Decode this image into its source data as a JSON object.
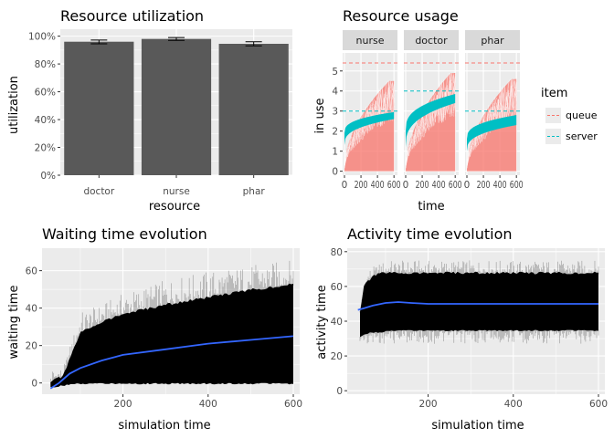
{
  "colors": {
    "panel_bg": "#ebebeb",
    "grid_major": "#ffffff",
    "strip_bg": "#d9d9d9",
    "bar_fill": "#595959",
    "queue": "#f8766d",
    "server": "#00bfc4",
    "trend": "#3366ff",
    "traces": "#000000"
  },
  "chart_data": [
    {
      "id": "utilization",
      "type": "bar",
      "title": "Resource utilization",
      "xlabel": "resource",
      "ylabel": "utilization",
      "categories": [
        "doctor",
        "nurse",
        "phar"
      ],
      "values": [
        0.96,
        0.98,
        0.945
      ],
      "error_low": [
        0.945,
        0.97,
        0.93
      ],
      "error_high": [
        0.972,
        0.99,
        0.96
      ],
      "ylim": [
        0,
        1.05
      ],
      "yticks": [
        0,
        0.2,
        0.4,
        0.6,
        0.8,
        1.0
      ],
      "ytick_labels": [
        "0%",
        "20%",
        "40%",
        "60%",
        "80%",
        "100%"
      ],
      "grid": true
    },
    {
      "id": "usage",
      "type": "line",
      "title": "Resource usage",
      "xlabel": "time",
      "ylabel": "in use",
      "facets": [
        {
          "label": "nurse",
          "queue_cap": 5.4,
          "server_cap": 3,
          "server_start": [
            1.3,
            1.9
          ],
          "server_end": [
            2.6,
            2.95
          ],
          "queue_end": 4.5
        },
        {
          "label": "doctor",
          "queue_cap": 5.4,
          "server_cap": 4,
          "server_start": [
            1.2,
            2.0
          ],
          "server_end": [
            3.4,
            3.85
          ],
          "queue_end": 4.9
        },
        {
          "label": "phar",
          "queue_cap": 5.4,
          "server_cap": 3,
          "server_start": [
            1.0,
            1.6
          ],
          "server_end": [
            2.3,
            2.8
          ],
          "queue_end": 4.6
        }
      ],
      "xlim": [
        0,
        620
      ],
      "xticks": [
        0,
        200,
        400,
        600
      ],
      "xtick_labels": [
        "0",
        "200",
        "400",
        "600"
      ],
      "ylim": [
        -0.2,
        5.9
      ],
      "yticks": [
        0,
        1,
        2,
        3,
        4,
        5
      ],
      "legend": {
        "title": "item",
        "position": "right",
        "entries": [
          {
            "name": "queue",
            "color": "#f8766d"
          },
          {
            "name": "server",
            "color": "#00bfc4"
          }
        ]
      },
      "grid": true
    },
    {
      "id": "waiting",
      "type": "line",
      "title": "Waiting time evolution",
      "xlabel": "simulation time",
      "ylabel": "waiting time",
      "xlim": [
        10,
        615
      ],
      "ylim": [
        -6,
        72
      ],
      "xticks": [
        200,
        400,
        600
      ],
      "yticks": [
        0,
        20,
        40,
        60
      ],
      "band": {
        "x": [
          30,
          60,
          80,
          100,
          150,
          200,
          300,
          400,
          500,
          600
        ],
        "low": [
          -2,
          -1,
          0,
          0,
          0,
          0,
          0,
          0,
          0,
          0
        ],
        "high": [
          0,
          3,
          15,
          26,
          32,
          36,
          41,
          45,
          49,
          52
        ]
      },
      "spikes": {
        "x": [
          60,
          100,
          150,
          200,
          300,
          400,
          500,
          600
        ],
        "high": [
          8,
          38,
          42,
          48,
          55,
          60,
          63,
          66
        ]
      },
      "trend": {
        "x": [
          30,
          50,
          75,
          100,
          150,
          200,
          300,
          400,
          500,
          600
        ],
        "y": [
          -3,
          0,
          5,
          8,
          12,
          15,
          18,
          21,
          23,
          25
        ]
      },
      "grid": true
    },
    {
      "id": "activity",
      "type": "line",
      "title": "Activity time evolution",
      "xlabel": "simulation time",
      "ylabel": "activity time",
      "xlim": [
        10,
        615
      ],
      "ylim": [
        -2,
        82
      ],
      "xticks": [
        200,
        400,
        600
      ],
      "yticks": [
        0,
        20,
        40,
        60,
        80
      ],
      "band": {
        "x": [
          40,
          50,
          70,
          90,
          110,
          600
        ],
        "low": [
          31,
          33,
          34,
          34,
          35,
          35
        ],
        "high": [
          45,
          60,
          65,
          67,
          67,
          67
        ]
      },
      "spikes": {
        "x": [
          40,
          60,
          100,
          200,
          300,
          400,
          500,
          600
        ],
        "low": [
          28,
          27,
          27,
          27,
          27,
          27,
          27,
          27
        ],
        "high": [
          48,
          70,
          75,
          75,
          75,
          75,
          75,
          75
        ]
      },
      "trend": {
        "x": [
          35,
          50,
          70,
          100,
          130,
          160,
          200,
          300,
          400,
          500,
          600
        ],
        "y": [
          46.5,
          47.5,
          49,
          50.5,
          51,
          50.5,
          50,
          50,
          50,
          50,
          50
        ]
      },
      "grid": true
    }
  ]
}
